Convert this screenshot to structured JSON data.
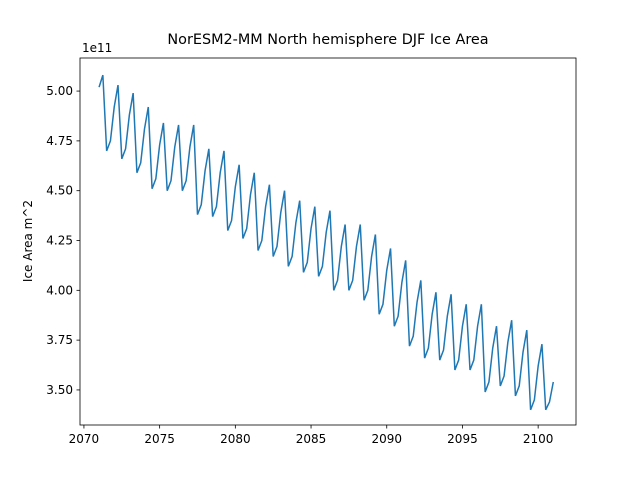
{
  "chart_data": {
    "type": "line",
    "title": "NorESM2-MM North hemisphere DJF Ice Area",
    "y_label": "Ice Area m^2",
    "y_offset_label": "1e11",
    "x": [
      2071,
      2071.25,
      2071.5,
      2071.75,
      2072,
      2072.25,
      2072.5,
      2072.75,
      2073,
      2073.25,
      2073.5,
      2073.75,
      2074,
      2074.25,
      2074.5,
      2074.75,
      2075,
      2075.25,
      2075.5,
      2075.75,
      2076,
      2076.25,
      2076.5,
      2076.75,
      2077,
      2077.25,
      2077.5,
      2077.75,
      2078,
      2078.25,
      2078.5,
      2078.75,
      2079,
      2079.25,
      2079.5,
      2079.75,
      2080,
      2080.25,
      2080.5,
      2080.75,
      2081,
      2081.25,
      2081.5,
      2081.75,
      2082,
      2082.25,
      2082.5,
      2082.75,
      2083,
      2083.25,
      2083.5,
      2083.75,
      2084,
      2084.25,
      2084.5,
      2084.75,
      2085,
      2085.25,
      2085.5,
      2085.75,
      2086,
      2086.25,
      2086.5,
      2086.75,
      2087,
      2087.25,
      2087.5,
      2087.75,
      2088,
      2088.25,
      2088.5,
      2088.75,
      2089,
      2089.25,
      2089.5,
      2089.75,
      2090,
      2090.25,
      2090.5,
      2090.75,
      2091,
      2091.25,
      2091.5,
      2091.75,
      2092,
      2092.25,
      2092.5,
      2092.75,
      2093,
      2093.25,
      2093.5,
      2093.75,
      2094,
      2094.25,
      2094.5,
      2094.75,
      2095,
      2095.25,
      2095.5,
      2095.75,
      2096,
      2096.25,
      2096.5,
      2096.75,
      2097,
      2097.25,
      2097.5,
      2097.75,
      2098,
      2098.25,
      2098.5,
      2098.75,
      2099,
      2099.25,
      2099.5,
      2099.75,
      2100,
      2100.25,
      2100.5,
      2100.75,
      2101
    ],
    "series": [
      {
        "color": "#1f77b4",
        "values": [
          5.02,
          5.08,
          4.7,
          4.75,
          4.92,
          5.03,
          4.66,
          4.71,
          4.88,
          4.99,
          4.59,
          4.64,
          4.81,
          4.92,
          4.51,
          4.56,
          4.73,
          4.84,
          4.5,
          4.55,
          4.72,
          4.83,
          4.5,
          4.55,
          4.72,
          4.83,
          4.38,
          4.43,
          4.6,
          4.71,
          4.37,
          4.42,
          4.59,
          4.7,
          4.3,
          4.35,
          4.52,
          4.63,
          4.26,
          4.31,
          4.48,
          4.59,
          4.2,
          4.25,
          4.42,
          4.53,
          4.17,
          4.22,
          4.39,
          4.5,
          4.12,
          4.17,
          4.34,
          4.45,
          4.09,
          4.14,
          4.31,
          4.42,
          4.07,
          4.12,
          4.29,
          4.4,
          4.0,
          4.05,
          4.22,
          4.33,
          4.0,
          4.05,
          4.22,
          4.33,
          3.95,
          4.0,
          4.17,
          4.28,
          3.88,
          3.93,
          4.1,
          4.21,
          3.82,
          3.87,
          4.04,
          4.15,
          3.72,
          3.77,
          3.94,
          4.05,
          3.66,
          3.71,
          3.88,
          3.99,
          3.65,
          3.7,
          3.87,
          3.98,
          3.6,
          3.65,
          3.82,
          3.93,
          3.6,
          3.65,
          3.82,
          3.93,
          3.49,
          3.54,
          3.71,
          3.82,
          3.52,
          3.57,
          3.74,
          3.85,
          3.47,
          3.52,
          3.69,
          3.8,
          3.4,
          3.45,
          3.62,
          3.73,
          3.4,
          3.44,
          3.54
        ]
      }
    ],
    "xlim": [
      2069.74,
      2102.5
    ],
    "ylim": [
      3.324,
      5.166
    ],
    "xticks": [
      2070,
      2075,
      2080,
      2085,
      2090,
      2095,
      2100
    ],
    "yticks": [
      {
        "value": 3.5,
        "label": "3.50"
      },
      {
        "value": 3.75,
        "label": "3.75"
      },
      {
        "value": 4,
        "label": "4.00"
      },
      {
        "value": 4.25,
        "label": "4.25"
      },
      {
        "value": 4.5,
        "label": "4.50"
      },
      {
        "value": 4.75,
        "label": "4.75"
      },
      {
        "value": 5,
        "label": "5.00"
      }
    ]
  }
}
